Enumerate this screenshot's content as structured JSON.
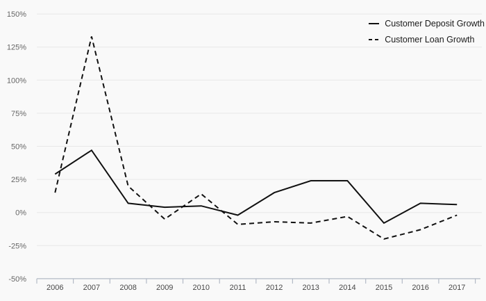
{
  "chart_data": {
    "type": "line",
    "title": "",
    "xlabel": "",
    "ylabel": "",
    "x_labels": [
      "2006",
      "2007",
      "2008",
      "2009",
      "2010",
      "2011",
      "2012",
      "2013",
      "2014",
      "2015",
      "2016",
      "2017"
    ],
    "series": [
      {
        "name": "Customer Deposit Growth",
        "line_style": "solid",
        "color": "#111111",
        "values": [
          29,
          47,
          7,
          4,
          5,
          -2,
          15,
          24,
          24,
          -8,
          7,
          6
        ]
      },
      {
        "name": "Customer Loan Growth",
        "line_style": "dashed",
        "color": "#111111",
        "values": [
          15,
          133,
          20,
          -5,
          14,
          -9,
          -7,
          -8,
          -3,
          -20,
          -13,
          -2
        ]
      }
    ],
    "y_axis": {
      "min": -50,
      "max": 150,
      "step": 25,
      "unit": "%",
      "tick_labels": [
        "150%",
        "125%",
        "100%",
        "75%",
        "50%",
        "25%",
        "0%",
        "-25%",
        "-50%"
      ]
    },
    "legend": {
      "position": "top-right",
      "entries": [
        "Customer Deposit Growth",
        "Customer Loan Growth"
      ]
    },
    "grid": true,
    "colors": {
      "background": "#f9f9f9",
      "gridline": "#e8e8e8",
      "axis": "#b3bac6",
      "y_tick_label": "#666666",
      "x_tick_label": "#474747"
    }
  }
}
